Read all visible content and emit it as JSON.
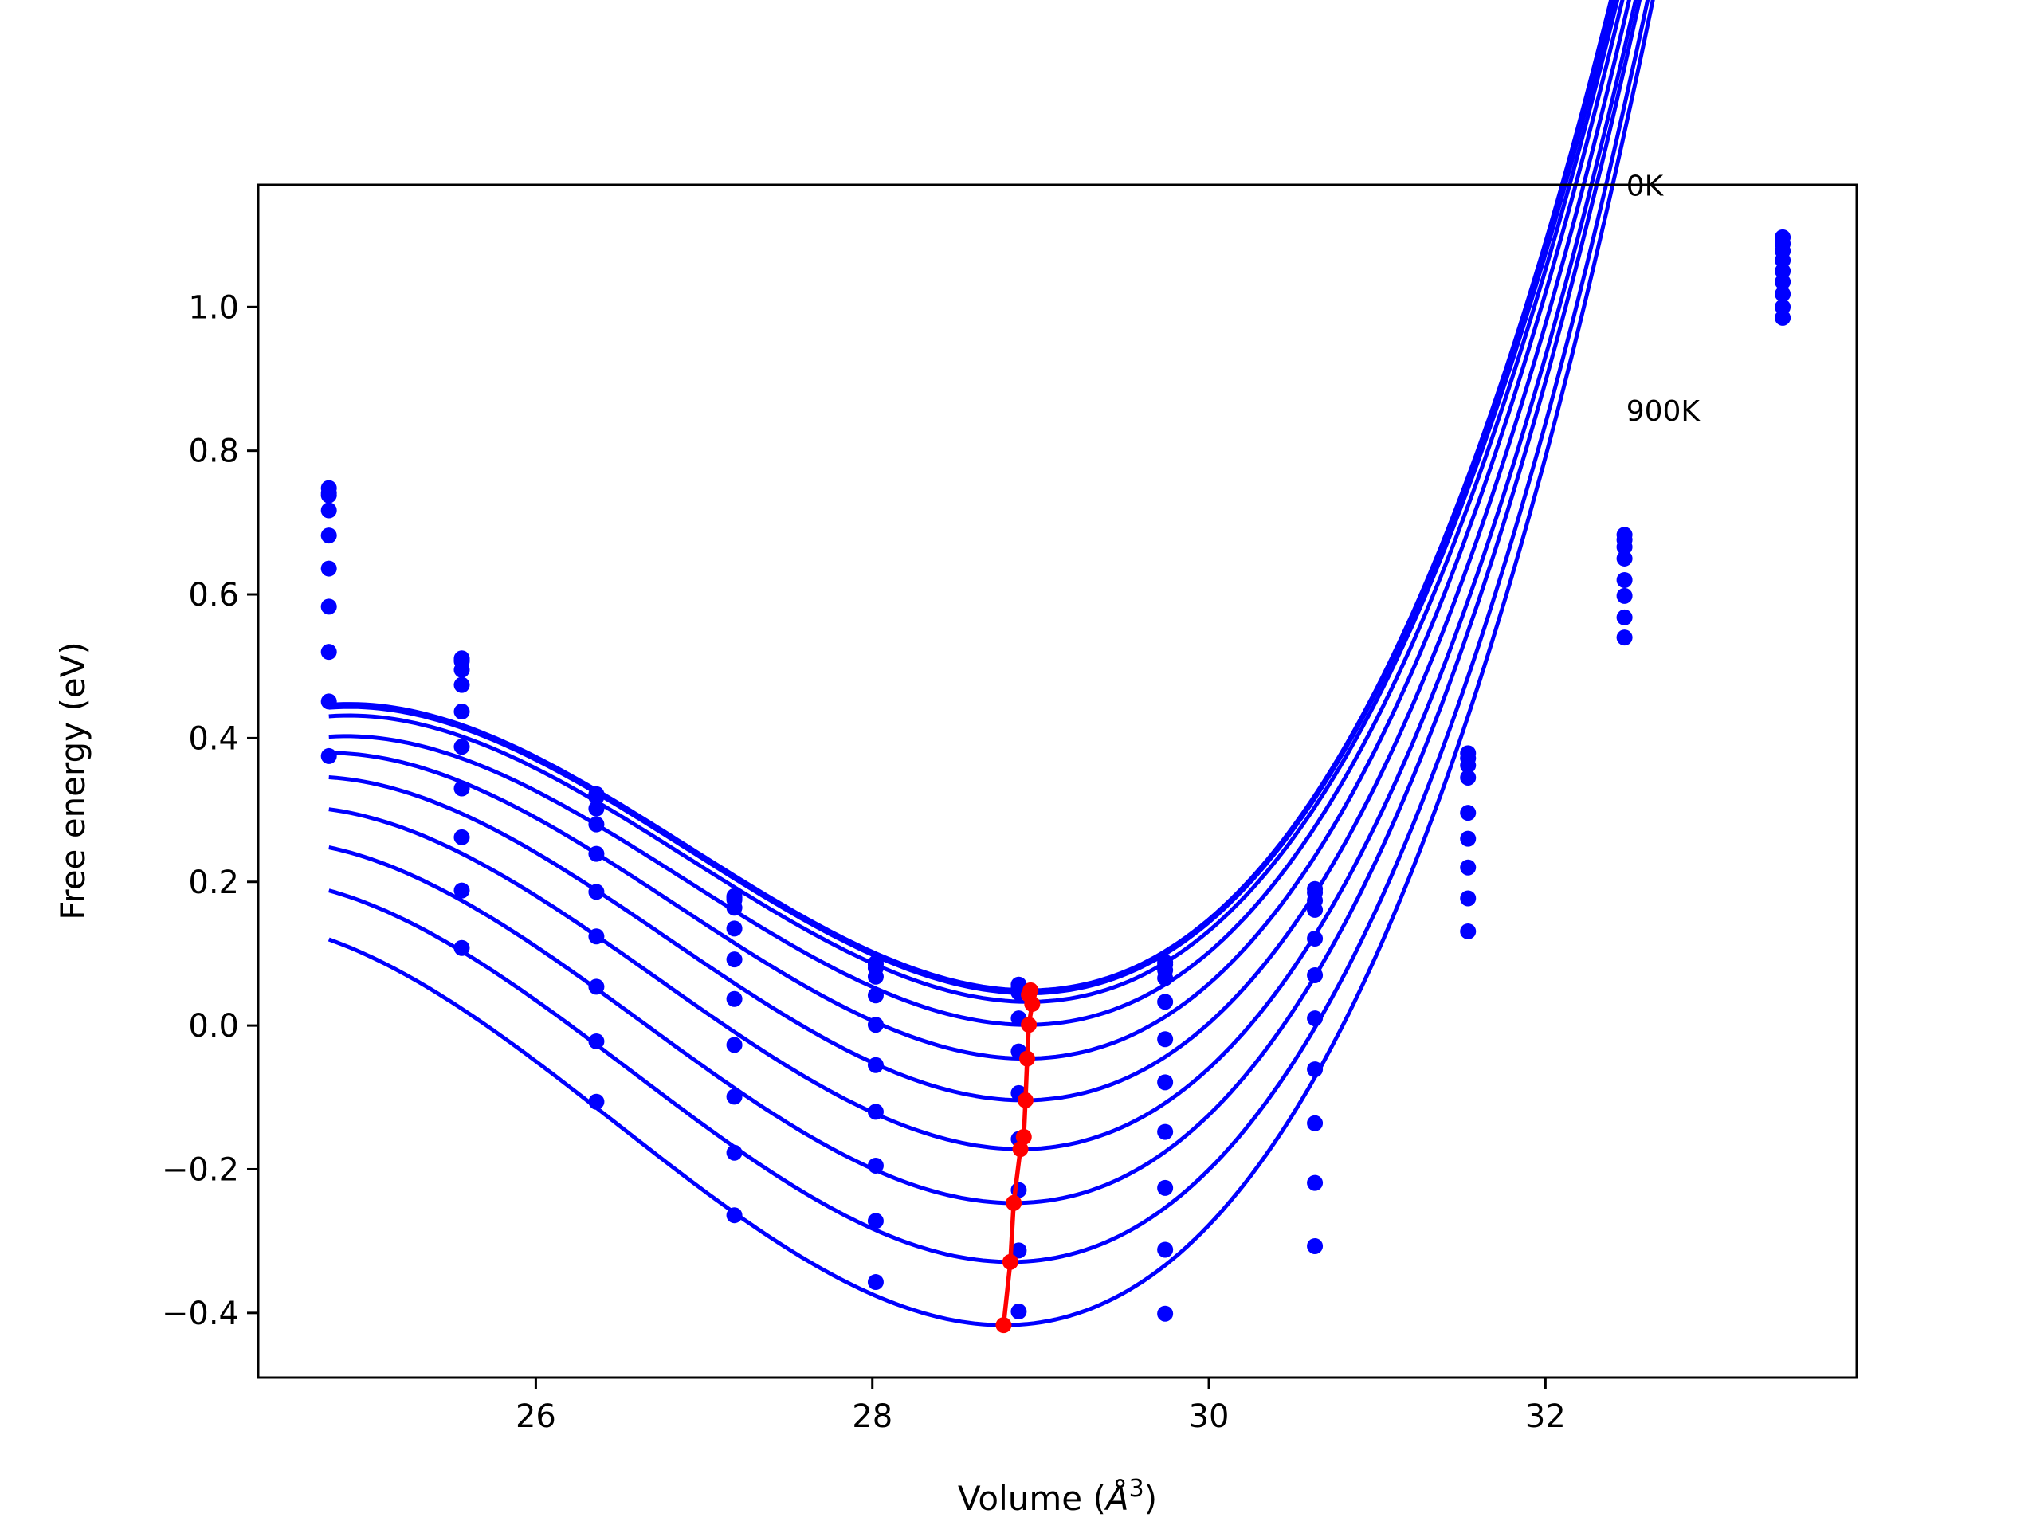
{
  "chart_data": {
    "type": "line",
    "title": "",
    "xlabel": "Volume (",
    "xlabel_unit": "Å",
    "xlabel_exp": "3",
    "xlabel_close": ")",
    "ylabel": "Free energy (eV)",
    "xlim": [
      24.35,
      33.85
    ],
    "ylim": [
      -0.49,
      1.17
    ],
    "xticks": [
      26,
      28,
      30,
      32
    ],
    "yticks": [
      -0.4,
      -0.2,
      0.0,
      0.2,
      0.4,
      0.6,
      0.8,
      1.0
    ],
    "xtick_labels": [
      "26",
      "28",
      "30",
      "32"
    ],
    "ytick_labels": [
      "−0.4",
      "−0.2",
      "0.0",
      "0.2",
      "0.4",
      "0.6",
      "0.8",
      "1.0"
    ],
    "grid": false,
    "legend": "none",
    "annotations": [
      {
        "text": "0K",
        "x": 32.48,
        "y": 1.155
      },
      {
        "text": "900K",
        "x": 32.48,
        "y": 0.842
      }
    ],
    "colors": {
      "curves": "#0000ff",
      "minimum_path": "#ff0000"
    },
    "x": [
      24.77,
      25.56,
      26.36,
      27.18,
      28.02,
      28.87,
      29.74,
      30.63,
      31.54,
      32.47,
      33.41
    ],
    "series": [
      {
        "values": [
          0.748,
          0.511,
          0.322,
          0.18,
          0.087,
          0.057,
          0.088,
          0.19,
          0.379,
          0.683,
          1.097
        ],
        "fit_min_x": 28.93,
        "fit_min_y": 0.049,
        "fit_a": 0.0733,
        "fit_b": 0.0121
      },
      {
        "values": [
          0.741,
          0.509,
          0.32,
          0.178,
          0.085,
          0.053,
          0.085,
          0.185,
          0.372,
          0.676,
          1.088
        ],
        "fit_min_x": 28.93,
        "fit_min_y": 0.045,
        "fit_a": 0.0733,
        "fit_b": 0.0121
      },
      {
        "values": [
          0.738,
          0.507,
          0.318,
          0.175,
          0.08,
          0.046,
          0.077,
          0.174,
          0.362,
          0.666,
          1.078
        ],
        "fit_min_x": 28.93,
        "fit_min_y": 0.033,
        "fit_a": 0.0733,
        "fit_b": 0.0121
      },
      {
        "values": [
          0.717,
          0.495,
          0.302,
          0.164,
          0.068,
          0.01,
          0.066,
          0.161,
          0.345,
          0.65,
          1.065
        ],
        "fit_min_x": 28.92,
        "fit_min_y": 0.001,
        "fit_a": 0.0735,
        "fit_b": 0.0121
      },
      {
        "values": [
          0.682,
          0.474,
          0.28,
          0.135,
          0.042,
          -0.036,
          0.033,
          0.121,
          0.296,
          0.62,
          1.05
        ],
        "fit_min_x": 28.91,
        "fit_min_y": -0.046,
        "fit_a": 0.0745,
        "fit_b": 0.012
      },
      {
        "values": [
          0.636,
          0.437,
          0.239,
          0.092,
          0.001,
          -0.094,
          -0.019,
          0.07,
          0.26,
          0.598,
          1.035
        ],
        "fit_min_x": 28.9,
        "fit_min_y": -0.104,
        "fit_a": 0.0755,
        "fit_b": 0.0119
      },
      {
        "values": [
          0.583,
          0.388,
          0.186,
          0.037,
          -0.055,
          -0.158,
          -0.079,
          0.01,
          0.22,
          0.568,
          1.018
        ],
        "fit_min_x": 28.88,
        "fit_min_y": -0.172,
        "fit_a": 0.0765,
        "fit_b": 0.0118
      },
      {
        "values": [
          0.52,
          0.33,
          0.124,
          -0.027,
          -0.12,
          -0.229,
          -0.148,
          -0.061,
          0.177,
          0.54,
          1.0
        ],
        "fit_min_x": 28.84,
        "fit_min_y": -0.247,
        "fit_a": 0.0775,
        "fit_b": 0.0117
      },
      {
        "values": [
          0.451,
          0.262,
          0.054,
          -0.099,
          -0.195,
          -0.313,
          -0.226,
          -0.136,
          0.131,
          null,
          0.985
        ],
        "fit_min_x": 28.82,
        "fit_min_y": -0.329,
        "fit_a": 0.0785,
        "fit_b": 0.0116
      },
      {
        "values": [
          0.375,
          0.188,
          -0.022,
          -0.177,
          -0.272,
          -0.398,
          -0.312,
          -0.219,
          null,
          null,
          null
        ],
        "fit_min_x": 28.78,
        "fit_min_y": -0.417,
        "fit_a": 0.0795,
        "fit_b": 0.0115
      },
      {
        "values": [
          null,
          0.108,
          -0.106,
          -0.264,
          -0.357,
          null,
          -0.401,
          -0.307,
          null,
          null,
          null
        ]
      }
    ],
    "minimum_path": {
      "x": [
        28.94,
        28.93,
        28.95,
        28.93,
        28.92,
        28.91,
        28.9,
        28.88,
        28.84,
        28.82,
        28.78
      ],
      "y": [
        0.049,
        0.043,
        0.03,
        0.001,
        -0.046,
        -0.104,
        -0.155,
        -0.172,
        -0.247,
        -0.329,
        -0.417
      ]
    }
  }
}
